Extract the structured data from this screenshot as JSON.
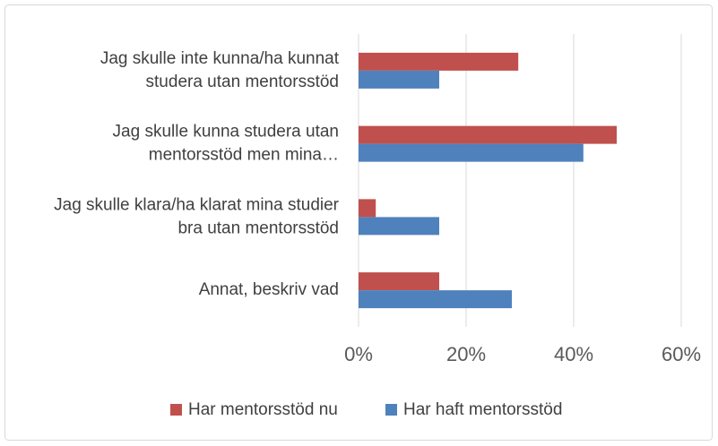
{
  "chart_data": {
    "type": "bar",
    "orientation": "horizontal",
    "categories": [
      [
        "Jag skulle inte kunna/ha kunnat",
        "studera utan mentorsstöd"
      ],
      [
        "Jag skulle kunna studera utan",
        "mentorsstöd men mina…"
      ],
      [
        "Jag skulle klara/ha klarat mina studier",
        "bra utan mentorsstöd"
      ],
      [
        "Annat, beskriv vad"
      ]
    ],
    "series": [
      {
        "name": "Har mentorsstöd nu",
        "color": "#c0504d",
        "values": [
          29.7,
          48,
          3.2,
          15
        ]
      },
      {
        "name": "Har haft mentorsstöd",
        "color": "#4f81bd",
        "values": [
          15,
          41.8,
          15,
          28.5
        ]
      }
    ],
    "xlim": [
      0,
      60
    ],
    "xticks": [
      {
        "value": 0,
        "label": "0%"
      },
      {
        "value": 20,
        "label": "20%"
      },
      {
        "value": 40,
        "label": "40%"
      },
      {
        "value": 60,
        "label": "60%"
      }
    ],
    "grid": true,
    "legend": "bottom"
  }
}
